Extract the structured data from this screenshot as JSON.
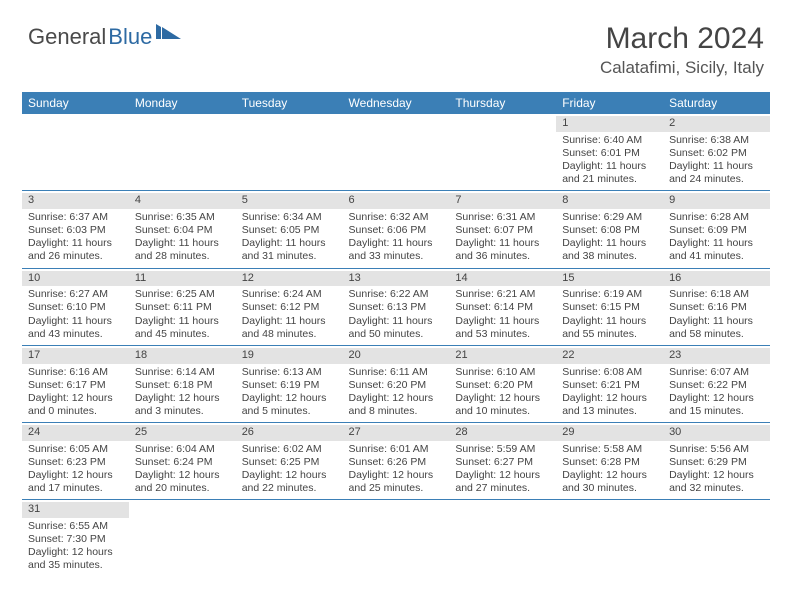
{
  "brand": {
    "part1": "General",
    "part2": "Blue"
  },
  "title": "March 2024",
  "location": "Calatafimi, Sicily, Italy",
  "colors": {
    "header_bg": "#3b7fb6",
    "header_fg": "#ffffff",
    "daynum_bg": "#e3e3e3",
    "rule": "#3b7fb6",
    "brand_gray": "#4a4a4a",
    "brand_blue": "#2d6aa3"
  },
  "weekdays": [
    "Sunday",
    "Monday",
    "Tuesday",
    "Wednesday",
    "Thursday",
    "Friday",
    "Saturday"
  ],
  "first_weekday_index": 5,
  "days": [
    {
      "n": 1,
      "sr": "6:40 AM",
      "ss": "6:01 PM",
      "dl": "11 hours and 21 minutes."
    },
    {
      "n": 2,
      "sr": "6:38 AM",
      "ss": "6:02 PM",
      "dl": "11 hours and 24 minutes."
    },
    {
      "n": 3,
      "sr": "6:37 AM",
      "ss": "6:03 PM",
      "dl": "11 hours and 26 minutes."
    },
    {
      "n": 4,
      "sr": "6:35 AM",
      "ss": "6:04 PM",
      "dl": "11 hours and 28 minutes."
    },
    {
      "n": 5,
      "sr": "6:34 AM",
      "ss": "6:05 PM",
      "dl": "11 hours and 31 minutes."
    },
    {
      "n": 6,
      "sr": "6:32 AM",
      "ss": "6:06 PM",
      "dl": "11 hours and 33 minutes."
    },
    {
      "n": 7,
      "sr": "6:31 AM",
      "ss": "6:07 PM",
      "dl": "11 hours and 36 minutes."
    },
    {
      "n": 8,
      "sr": "6:29 AM",
      "ss": "6:08 PM",
      "dl": "11 hours and 38 minutes."
    },
    {
      "n": 9,
      "sr": "6:28 AM",
      "ss": "6:09 PM",
      "dl": "11 hours and 41 minutes."
    },
    {
      "n": 10,
      "sr": "6:27 AM",
      "ss": "6:10 PM",
      "dl": "11 hours and 43 minutes."
    },
    {
      "n": 11,
      "sr": "6:25 AM",
      "ss": "6:11 PM",
      "dl": "11 hours and 45 minutes."
    },
    {
      "n": 12,
      "sr": "6:24 AM",
      "ss": "6:12 PM",
      "dl": "11 hours and 48 minutes."
    },
    {
      "n": 13,
      "sr": "6:22 AM",
      "ss": "6:13 PM",
      "dl": "11 hours and 50 minutes."
    },
    {
      "n": 14,
      "sr": "6:21 AM",
      "ss": "6:14 PM",
      "dl": "11 hours and 53 minutes."
    },
    {
      "n": 15,
      "sr": "6:19 AM",
      "ss": "6:15 PM",
      "dl": "11 hours and 55 minutes."
    },
    {
      "n": 16,
      "sr": "6:18 AM",
      "ss": "6:16 PM",
      "dl": "11 hours and 58 minutes."
    },
    {
      "n": 17,
      "sr": "6:16 AM",
      "ss": "6:17 PM",
      "dl": "12 hours and 0 minutes."
    },
    {
      "n": 18,
      "sr": "6:14 AM",
      "ss": "6:18 PM",
      "dl": "12 hours and 3 minutes."
    },
    {
      "n": 19,
      "sr": "6:13 AM",
      "ss": "6:19 PM",
      "dl": "12 hours and 5 minutes."
    },
    {
      "n": 20,
      "sr": "6:11 AM",
      "ss": "6:20 PM",
      "dl": "12 hours and 8 minutes."
    },
    {
      "n": 21,
      "sr": "6:10 AM",
      "ss": "6:20 PM",
      "dl": "12 hours and 10 minutes."
    },
    {
      "n": 22,
      "sr": "6:08 AM",
      "ss": "6:21 PM",
      "dl": "12 hours and 13 minutes."
    },
    {
      "n": 23,
      "sr": "6:07 AM",
      "ss": "6:22 PM",
      "dl": "12 hours and 15 minutes."
    },
    {
      "n": 24,
      "sr": "6:05 AM",
      "ss": "6:23 PM",
      "dl": "12 hours and 17 minutes."
    },
    {
      "n": 25,
      "sr": "6:04 AM",
      "ss": "6:24 PM",
      "dl": "12 hours and 20 minutes."
    },
    {
      "n": 26,
      "sr": "6:02 AM",
      "ss": "6:25 PM",
      "dl": "12 hours and 22 minutes."
    },
    {
      "n": 27,
      "sr": "6:01 AM",
      "ss": "6:26 PM",
      "dl": "12 hours and 25 minutes."
    },
    {
      "n": 28,
      "sr": "5:59 AM",
      "ss": "6:27 PM",
      "dl": "12 hours and 27 minutes."
    },
    {
      "n": 29,
      "sr": "5:58 AM",
      "ss": "6:28 PM",
      "dl": "12 hours and 30 minutes."
    },
    {
      "n": 30,
      "sr": "5:56 AM",
      "ss": "6:29 PM",
      "dl": "12 hours and 32 minutes."
    },
    {
      "n": 31,
      "sr": "6:55 AM",
      "ss": "7:30 PM",
      "dl": "12 hours and 35 minutes."
    }
  ],
  "labels": {
    "sunrise": "Sunrise:",
    "sunset": "Sunset:",
    "daylight": "Daylight:"
  }
}
